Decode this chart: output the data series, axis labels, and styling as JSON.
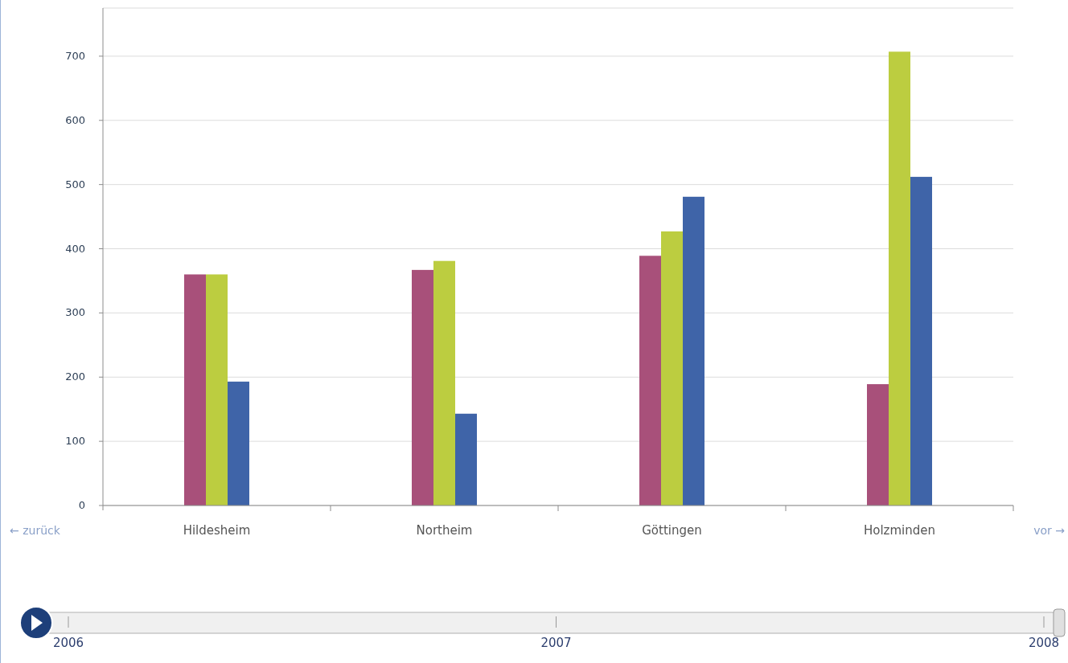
{
  "chart_data": {
    "type": "bar",
    "categories": [
      "Hildesheim",
      "Northeim",
      "Göttingen",
      "Holzminden"
    ],
    "series": [
      {
        "color": "#a8507a",
        "values": [
          360,
          367,
          389,
          189
        ]
      },
      {
        "color": "#bccd40",
        "values": [
          360,
          381,
          427,
          707
        ]
      },
      {
        "color": "#3f64a8",
        "values": [
          193,
          143,
          481,
          512
        ]
      }
    ],
    "ylim": [
      0,
      775
    ],
    "yticks": [
      0,
      100,
      200,
      300,
      400,
      500,
      600,
      700
    ],
    "grid": "y",
    "annotations": [
      "← zurück",
      "vor →",
      "2006",
      "2007",
      "2008"
    ]
  }
}
